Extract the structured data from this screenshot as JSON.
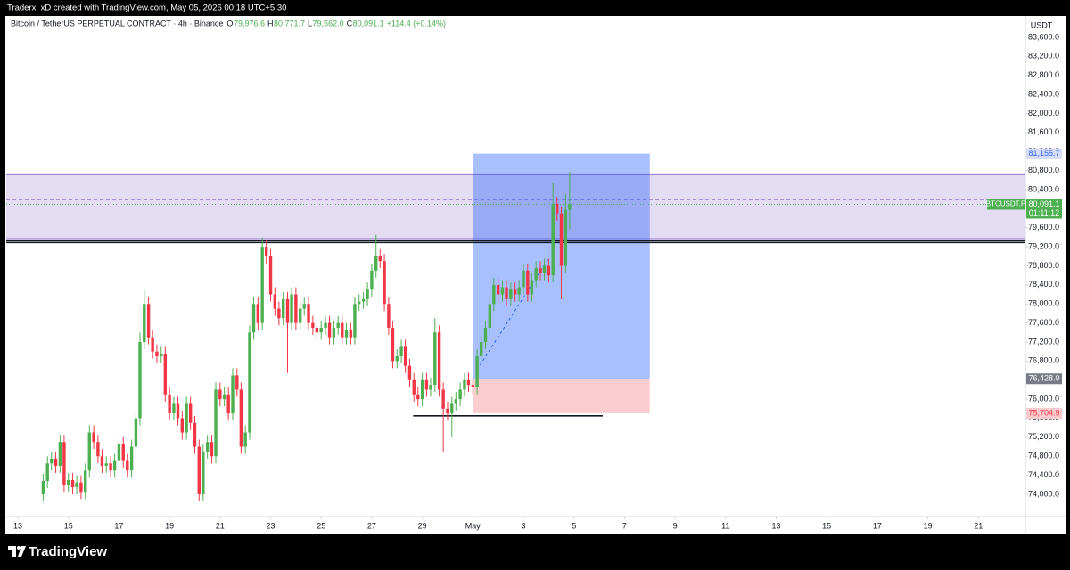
{
  "header": {
    "watermark": "Traderx_xD created with TradingView.com, May 05, 2026 00:18 UTC+5:30"
  },
  "chart_data": {
    "type": "candlestick",
    "legend": {
      "symbol": "Bitcoin / TetherUS PERPETUAL CONTRACT · 4h · Binance",
      "items": [
        {
          "label": "O",
          "value": "79,976.6"
        },
        {
          "label": "H",
          "value": "80,771.7"
        },
        {
          "label": "L",
          "value": "79,562.0"
        },
        {
          "label": "C",
          "value": "80,091.1"
        }
      ],
      "change": "+114.4 (+0.14%)"
    },
    "currency": "USDT",
    "up_color": "#4caf50",
    "down_color": "#f23645",
    "x": [
      14,
      14.17,
      14.33,
      14.5,
      14.67,
      14.83,
      15,
      15.17,
      15.33,
      15.5,
      15.67,
      15.83,
      16,
      16.17,
      16.33,
      16.5,
      16.67,
      16.83,
      17,
      17.17,
      17.33,
      17.5,
      17.67,
      17.83,
      18,
      18.17,
      18.33,
      18.5,
      18.67,
      18.83,
      19,
      19.17,
      19.33,
      19.5,
      19.67,
      19.83,
      20,
      20.17,
      20.33,
      20.5,
      20.67,
      20.83,
      21,
      21.17,
      21.33,
      21.5,
      21.67,
      21.83,
      22,
      22.17,
      22.33,
      22.5,
      22.67,
      22.83,
      23,
      23.17,
      23.33,
      23.5,
      23.67,
      23.83,
      24,
      24.17,
      24.33,
      24.5,
      24.67,
      24.83,
      25,
      25.17,
      25.33,
      25.5,
      25.67,
      25.83,
      26,
      26.17,
      26.33,
      26.5,
      26.67,
      26.83,
      27,
      27.17,
      27.33,
      27.5,
      27.67,
      27.83,
      28,
      28.17,
      28.33,
      28.5,
      28.67,
      28.83,
      29,
      29.17,
      29.33,
      29.5,
      29.67,
      29.83,
      30,
      30.17,
      30.33,
      30.5,
      30.67,
      30.83,
      31,
      31.17,
      31.33,
      31.5,
      31.67,
      31.83,
      32,
      32.17,
      32.33,
      32.5,
      32.67,
      32.83,
      33,
      33.17,
      33.33,
      33.5,
      33.67,
      33.83,
      34,
      34.17,
      34.33,
      34.5,
      34.67,
      34.83
    ],
    "open": [
      74000,
      74280,
      74650,
      74750,
      74600,
      75100,
      74200,
      74300,
      74150,
      74250,
      74050,
      74500,
      75300,
      75100,
      74800,
      74600,
      74650,
      74500,
      74700,
      75050,
      74700,
      74500,
      75000,
      75600,
      77200,
      78000,
      77300,
      77000,
      76900,
      76950,
      76100,
      75700,
      75900,
      75600,
      75300,
      75900,
      75500,
      75000,
      74000,
      74900,
      75100,
      74800,
      76200,
      76000,
      76100,
      75700,
      76500,
      76200,
      75000,
      75300,
      77400,
      78000,
      77600,
      79200,
      79000,
      78200,
      77900,
      77700,
      78100,
      77600,
      78200,
      77600,
      77900,
      78000,
      77600,
      77500,
      77400,
      77500,
      77600,
      77300,
      77500,
      77600,
      77300,
      77450,
      77300,
      78000,
      78050,
      78100,
      78300,
      78700,
      79000,
      78900,
      78000,
      77500,
      76800,
      76900,
      77100,
      76700,
      76400,
      76100,
      76000,
      76400,
      76200,
      76300,
      77400,
      76200,
      75800,
      75700,
      75900,
      76000,
      76200,
      76400,
      76300,
      76250,
      76900,
      77200,
      77500,
      78000,
      78400,
      78200,
      78350,
      78100,
      78300,
      78200,
      78350,
      78700,
      78200,
      78500,
      78750,
      78650,
      78800,
      78600,
      80100,
      79900,
      78800,
      79976.6
    ],
    "high": [
      74430,
      74800,
      74900,
      74900,
      75250,
      75250,
      74450,
      74450,
      74400,
      74400,
      74650,
      75450,
      75450,
      75250,
      74950,
      74800,
      74800,
      74850,
      75200,
      75200,
      74850,
      75150,
      75750,
      77400,
      78300,
      78150,
      77450,
      77150,
      77100,
      77100,
      76250,
      76050,
      76050,
      75750,
      76050,
      76050,
      75650,
      75150,
      75050,
      75250,
      75250,
      76350,
      76350,
      76250,
      76250,
      76650,
      76650,
      76350,
      75450,
      77550,
      78150,
      78150,
      79400,
      79350,
      79150,
      78350,
      78050,
      78250,
      78250,
      78350,
      78350,
      78050,
      78150,
      78150,
      77750,
      77650,
      77650,
      77750,
      77750,
      77650,
      77750,
      77750,
      77600,
      77600,
      78150,
      78200,
      78250,
      78450,
      78850,
      79450,
      79150,
      79050,
      78150,
      77650,
      77050,
      77250,
      77250,
      76850,
      76550,
      76250,
      76550,
      76550,
      76450,
      77700,
      77550,
      76350,
      75950,
      76050,
      76150,
      76350,
      76550,
      76550,
      76450,
      77050,
      77350,
      77650,
      78150,
      78550,
      78550,
      78500,
      78500,
      78450,
      78450,
      78500,
      78850,
      78850,
      78650,
      78900,
      78900,
      78950,
      78950,
      80550,
      80250,
      80050,
      80300,
      80771.7
    ],
    "low": [
      73850,
      74130,
      74500,
      74450,
      74450,
      74050,
      74050,
      74000,
      74000,
      73900,
      73900,
      74350,
      74950,
      74650,
      74450,
      74450,
      74350,
      74350,
      74550,
      74550,
      74350,
      74350,
      74850,
      75450,
      77050,
      77150,
      76850,
      76750,
      76750,
      75950,
      75550,
      75550,
      75450,
      75150,
      75150,
      75350,
      74850,
      73850,
      73850,
      74750,
      74650,
      74650,
      75850,
      75850,
      75550,
      75550,
      76050,
      74850,
      74850,
      75150,
      77250,
      77450,
      77450,
      78850,
      78050,
      77750,
      77550,
      77550,
      76550,
      77450,
      77450,
      77450,
      77750,
      77450,
      77350,
      77250,
      77250,
      77350,
      77150,
      77150,
      77350,
      77150,
      77150,
      77150,
      77150,
      77850,
      77900,
      77950,
      78150,
      78550,
      78750,
      77850,
      77350,
      76650,
      76650,
      76750,
      76550,
      76250,
      75950,
      75850,
      75850,
      76050,
      76050,
      76150,
      76050,
      74900,
      75550,
      75200,
      75750,
      75850,
      76050,
      76150,
      76100,
      76100,
      76750,
      77050,
      77350,
      77850,
      78050,
      78050,
      77950,
      77950,
      78050,
      78050,
      78200,
      78050,
      78050,
      78350,
      78500,
      78500,
      78450,
      78450,
      79750,
      78100,
      78650,
      79562
    ],
    "close": [
      74280,
      74650,
      74750,
      74600,
      75100,
      74200,
      74300,
      74150,
      74250,
      74050,
      74500,
      75300,
      75100,
      74800,
      74600,
      74650,
      74500,
      74700,
      75050,
      74700,
      74500,
      75000,
      75600,
      77200,
      78000,
      77300,
      77000,
      76900,
      76950,
      76100,
      75700,
      75900,
      75600,
      75300,
      75900,
      75500,
      75000,
      74000,
      74900,
      75100,
      74800,
      76200,
      76000,
      76100,
      75700,
      76500,
      76200,
      75000,
      75300,
      77400,
      78000,
      77600,
      79200,
      79000,
      78200,
      77900,
      77700,
      78100,
      77600,
      78200,
      77600,
      77900,
      78000,
      77600,
      77500,
      77400,
      77500,
      77600,
      77300,
      77500,
      77600,
      77300,
      77450,
      77300,
      78000,
      78050,
      78100,
      78300,
      78700,
      79000,
      78900,
      78000,
      77500,
      76800,
      76900,
      77100,
      76700,
      76400,
      76100,
      76000,
      76400,
      76200,
      76300,
      77400,
      76200,
      75800,
      75700,
      75900,
      76000,
      76200,
      76400,
      76300,
      76250,
      76900,
      77200,
      77500,
      78000,
      78400,
      78200,
      78350,
      78100,
      78300,
      78200,
      78350,
      78700,
      78200,
      78500,
      78750,
      78650,
      78800,
      78600,
      80100,
      79900,
      78800,
      79976.6,
      80091.1
    ],
    "xlim": [
      12.54,
      52.86
    ],
    "ylim": [
      73532,
      84049
    ],
    "xticks": [
      13,
      15,
      17,
      19,
      21,
      23,
      25,
      27,
      29,
      {
        "value": 31,
        "label": "May"
      },
      {
        "value": 33,
        "label": "3"
      },
      {
        "value": 35,
        "label": "5"
      },
      {
        "value": 37,
        "label": "7"
      },
      {
        "value": 39,
        "label": "9"
      },
      {
        "value": 41,
        "label": "11"
      },
      {
        "value": 43,
        "label": "13"
      },
      {
        "value": 45,
        "label": "15"
      },
      {
        "value": 47,
        "label": "17"
      },
      {
        "value": 49,
        "label": "19"
      },
      {
        "value": 51,
        "label": "21"
      }
    ],
    "yticks": [
      {
        "value": 74000,
        "label": "74,000.0"
      },
      {
        "value": 74400,
        "label": "74,400.0"
      },
      {
        "value": 74800,
        "label": "74,800.0"
      },
      {
        "value": 75200,
        "label": "75,200.0"
      },
      {
        "value": 75600,
        "label": "75,600.0"
      },
      {
        "value": 76000,
        "label": "76,000.0"
      },
      {
        "value": 76400,
        "label": "76,400.0"
      },
      {
        "value": 76800,
        "label": "76,800.0"
      },
      {
        "value": 77200,
        "label": "77,200.0"
      },
      {
        "value": 77600,
        "label": "77,600.0"
      },
      {
        "value": 78000,
        "label": "78,000.0"
      },
      {
        "value": 78400,
        "label": "78,400.0"
      },
      {
        "value": 78800,
        "label": "78,800.0"
      },
      {
        "value": 79200,
        "label": "79,200.0"
      },
      {
        "value": 79600,
        "label": "79,600.0"
      },
      {
        "value": 80000,
        "label": "80,000.0"
      },
      {
        "value": 80400,
        "label": "80,400.0"
      },
      {
        "value": 80800,
        "label": "80,800.0"
      },
      {
        "value": 81200,
        "label": "81,200.0"
      },
      {
        "value": 81600,
        "label": "81,600.0"
      },
      {
        "value": 82000,
        "label": "82,000.0"
      },
      {
        "value": 82400,
        "label": "82,400.0"
      },
      {
        "value": 82800,
        "label": "82,800.0"
      },
      {
        "value": 83200,
        "label": "83,200.0"
      },
      {
        "value": 83600,
        "label": "83,600.0"
      }
    ],
    "zone": {
      "ylim": [
        79370,
        80730
      ],
      "dashed_level": 80190
    },
    "levels": [
      {
        "value": 79330
      },
      {
        "value": 79290
      },
      {
        "value": 75650,
        "from": 28.64,
        "to": 36.14
      }
    ],
    "projection": {
      "x": [
        31.17,
        34
      ],
      "y": [
        76620,
        78960
      ]
    },
    "position": {
      "x": [
        31,
        38
      ],
      "target": {
        "value": 81155.7,
        "label": "81,155.7"
      },
      "entry": {
        "value": 76428,
        "label": "76,428.0"
      },
      "stop": {
        "value": 75704.9,
        "label": "75,704.9"
      }
    },
    "last_price": {
      "value": 80091.1,
      "label": "80,091.1",
      "symbol": "BTCUSDT.P",
      "countdown": "01:11:12"
    }
  },
  "footer": {
    "brand": "TradingView"
  }
}
